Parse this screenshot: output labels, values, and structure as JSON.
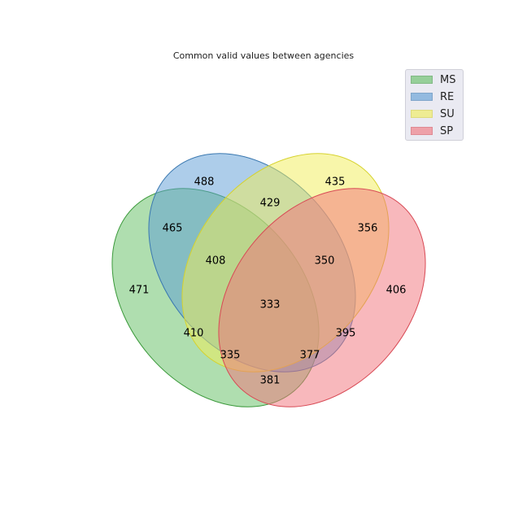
{
  "title": "Common valid values between agencies",
  "sets": [
    {
      "name": "MS",
      "fill": "#5fbe5f",
      "stroke": "#3c9a3c"
    },
    {
      "name": "RE",
      "fill": "#5b9bd5",
      "stroke": "#3a78b0"
    },
    {
      "name": "SU",
      "fill": "#f2ee55",
      "stroke": "#d6d22e"
    },
    {
      "name": "SP",
      "fill": "#f2727a",
      "stroke": "#d84a55"
    }
  ],
  "regions": [
    {
      "sets": [
        "RE"
      ],
      "value": "488"
    },
    {
      "sets": [
        "SU"
      ],
      "value": "435"
    },
    {
      "sets": [
        "RE",
        "SU"
      ],
      "value": "429"
    },
    {
      "sets": [
        "MS",
        "RE"
      ],
      "value": "465"
    },
    {
      "sets": [
        "SU",
        "SP"
      ],
      "value": "356"
    },
    {
      "sets": [
        "MS",
        "RE",
        "SU"
      ],
      "value": "408"
    },
    {
      "sets": [
        "RE",
        "SU",
        "SP"
      ],
      "value": "350"
    },
    {
      "sets": [
        "MS"
      ],
      "value": "471"
    },
    {
      "sets": [
        "SP"
      ],
      "value": "406"
    },
    {
      "sets": [
        "MS",
        "RE",
        "SU",
        "SP"
      ],
      "value": "333"
    },
    {
      "sets": [
        "MS",
        "SU"
      ],
      "value": "410"
    },
    {
      "sets": [
        "RE",
        "SP"
      ],
      "value": "395"
    },
    {
      "sets": [
        "MS",
        "SU",
        "SP"
      ],
      "value": "335"
    },
    {
      "sets": [
        "MS",
        "RE",
        "SP"
      ],
      "value": "377"
    },
    {
      "sets": [
        "MS",
        "SP"
      ],
      "value": "381"
    }
  ]
}
